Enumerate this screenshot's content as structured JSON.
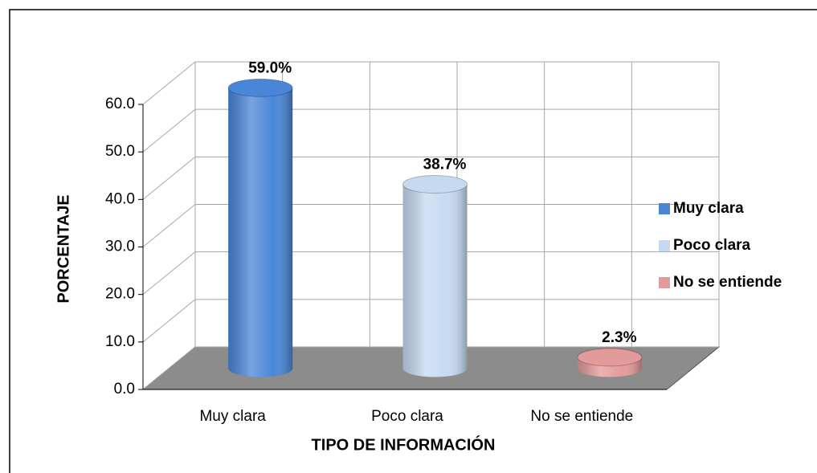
{
  "chart_data": {
    "type": "bar3d",
    "x_axis_label": "TIPO DE INFORMACIÓN",
    "y_axis_label": "PORCENTAJE",
    "categories": [
      "Muy clara",
      "Poco clara",
      "No se entiende"
    ],
    "values": [
      59.0,
      38.7,
      2.3
    ],
    "value_labels": [
      "59.0%",
      "38.7%",
      "2.3%"
    ],
    "colors": [
      "#4a86d8",
      "#c6d9f1",
      "#e39a9a"
    ],
    "ylim": [
      0,
      60
    ],
    "yticks": [
      {
        "value": 0,
        "label": "0.0"
      },
      {
        "value": 10,
        "label": "10.0"
      },
      {
        "value": 20,
        "label": "20.0"
      },
      {
        "value": 30,
        "label": "30.0"
      },
      {
        "value": 40,
        "label": "40.0"
      },
      {
        "value": 50,
        "label": "50.0"
      },
      {
        "value": 60,
        "label": "60.0"
      }
    ],
    "grid": true,
    "legend": "right"
  }
}
